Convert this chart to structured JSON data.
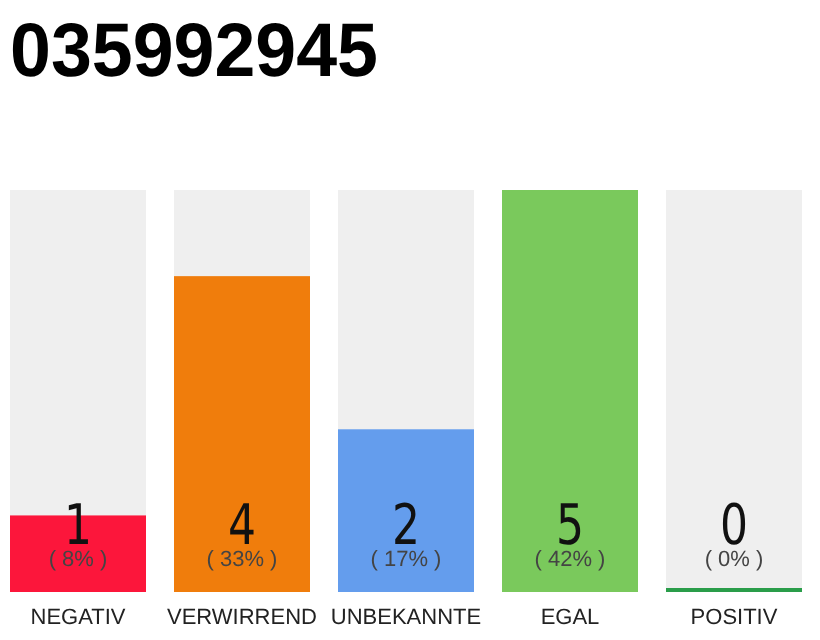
{
  "chart_data": {
    "type": "bar",
    "title": "035992945",
    "categories": [
      "NEGATIV",
      "VERWIRREND",
      "UNBEKANNTE",
      "EGAL",
      "POSITIV"
    ],
    "values": [
      8,
      33,
      17,
      42,
      0
    ],
    "colors": [
      "#fc163b",
      "#f07d0c",
      "#649ded",
      "#7ac95c",
      "#2a9d4a"
    ],
    "value_labels": [
      "( 8% )",
      "( 33% )",
      "( 17% )",
      "( 42% )",
      "( 0% )"
    ],
    "annotations": [
      "1",
      "4",
      "2",
      "5",
      "0"
    ]
  }
}
